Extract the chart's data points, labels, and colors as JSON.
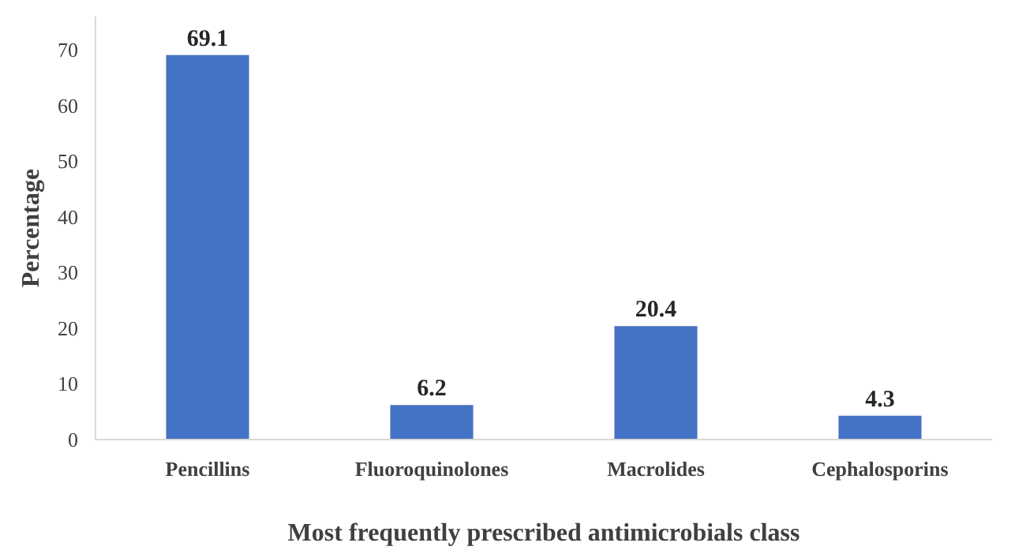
{
  "chart_data": {
    "type": "bar",
    "xlabel": "Most frequently prescribed antimicrobials class",
    "ylabel": "Percentage",
    "categories": [
      "Pencillins",
      "Fluoroquinolones",
      "Macrolides",
      "Cephalosporins"
    ],
    "values": [
      69.1,
      6.2,
      20.4,
      4.3
    ],
    "color": "#4472c4",
    "ylim": [
      0,
      76
    ],
    "yticks": [
      0,
      10,
      20,
      30,
      40,
      50,
      60,
      70
    ],
    "grid": false,
    "data_labels": true
  }
}
